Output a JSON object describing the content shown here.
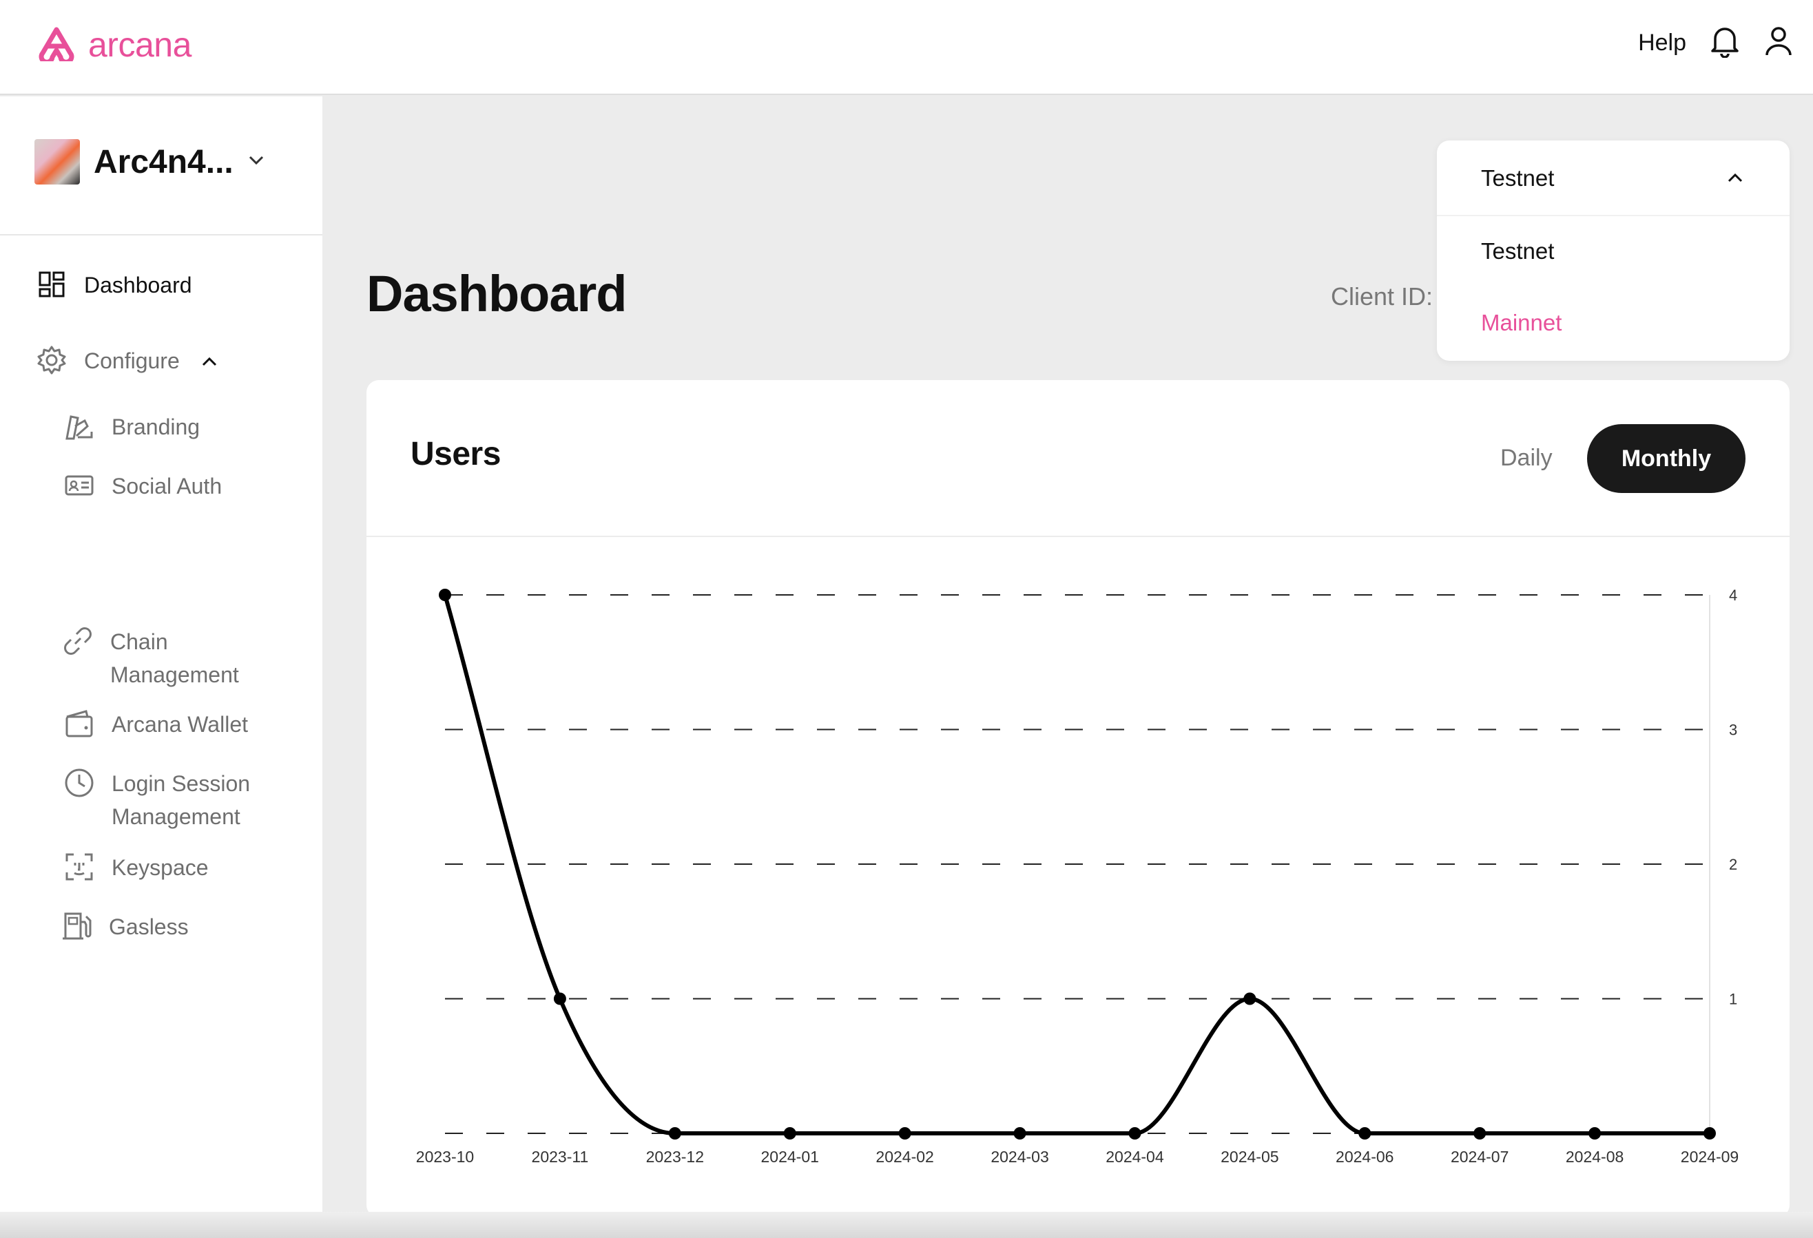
{
  "header": {
    "logo_text": "arcana",
    "help_label": "Help",
    "icons": [
      "arcana-logo-icon",
      "bell-icon",
      "user-icon"
    ]
  },
  "sidebar": {
    "app_name": "Arc4n4...",
    "items": [
      {
        "label": "Dashboard",
        "icon": "dashboard-icon"
      },
      {
        "label": "Configure",
        "icon": "gear-icon"
      },
      {
        "label": "Branding",
        "icon": "brush-icon"
      },
      {
        "label": "Social Auth",
        "icon": "id-card-icon"
      },
      {
        "label": "Chain Management",
        "icon": "link-icon"
      },
      {
        "label": "Arcana Wallet",
        "icon": "wallet-icon"
      },
      {
        "label": "Login Session Management",
        "icon": "clock-icon"
      },
      {
        "label": "Keyspace",
        "icon": "face-scan-icon"
      },
      {
        "label": "Gasless",
        "icon": "fuel-icon"
      }
    ]
  },
  "main": {
    "title": "Dashboard",
    "client_id_label": "Client ID:"
  },
  "network_dropdown": {
    "selected": "Testnet",
    "options": [
      "Testnet",
      "Mainnet"
    ],
    "highlight_color": "#e8509a"
  },
  "users_card": {
    "title": "Users",
    "toggle_daily": "Daily",
    "toggle_monthly": "Monthly",
    "active_toggle": "Monthly"
  },
  "chart_data": {
    "type": "line",
    "categories": [
      "2023-10",
      "2023-11",
      "2023-12",
      "2024-01",
      "2024-02",
      "2024-03",
      "2024-04",
      "2024-05",
      "2024-06",
      "2024-07",
      "2024-08",
      "2024-09"
    ],
    "values": [
      4,
      1,
      0,
      0,
      0,
      0,
      0,
      1,
      0,
      0,
      0,
      0
    ],
    "y_ticks": [
      1,
      2,
      3,
      4
    ],
    "ylim": [
      0,
      4
    ],
    "grid": "dashed-horizontal",
    "y_axis_position": "right",
    "line_color": "#000000"
  },
  "colors": {
    "brand": "#e8509a",
    "dark": "#1a1a1a"
  }
}
